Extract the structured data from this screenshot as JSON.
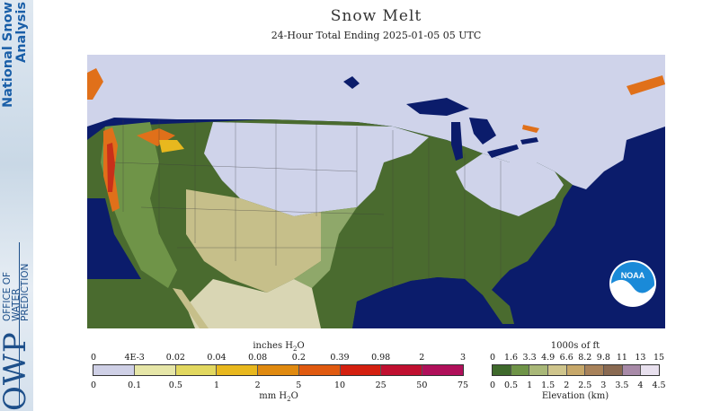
{
  "sidebar": {
    "title": "National Snow\nAnalysis",
    "org": "OFFICE OF\nWATER\nPREDICTION",
    "abbr": "OWP"
  },
  "header": {
    "title": "Snow Melt",
    "subtitle": "24-Hour Total Ending 2025-01-05 05 UTC"
  },
  "map": {
    "logo_text": "NOAA",
    "colors": {
      "ocean": "#0b1c6b",
      "snow": "#cfd3ea",
      "green_dark": "#4a6b2f",
      "green_light": "#8fa86a",
      "plains": "#c6bf8a",
      "melt_orange": "#e0701a",
      "melt_red": "#c8301a",
      "mexico": "#d9d6b4"
    }
  },
  "melt_legend": {
    "top_unit": "inches H",
    "top_unit_sub": "2",
    "top_unit_end": "O",
    "top_ticks": [
      "0",
      "4E-3",
      "0.02",
      "0.04",
      "0.08",
      "0.2",
      "0.39",
      "0.98",
      "2",
      "3"
    ],
    "bottom_ticks": [
      "0",
      "0.1",
      "0.5",
      "1",
      "2",
      "5",
      "10",
      "25",
      "50",
      "75"
    ],
    "bottom_unit": "mm H",
    "bottom_unit_sub": "2",
    "bottom_unit_end": "O",
    "colors": [
      "#cfd0e6",
      "#e6e6a8",
      "#e2d860",
      "#e8b81e",
      "#e08a10",
      "#e05a10",
      "#d42010",
      "#c01030",
      "#b0105a"
    ]
  },
  "elevation_legend": {
    "top_unit": "1000s of ft",
    "top_ticks": [
      "0",
      "1.6",
      "3.3",
      "4.9",
      "6.6",
      "8.2",
      "9.8",
      "11",
      "13",
      "15"
    ],
    "bottom_ticks": [
      "0",
      "0.5",
      "1",
      "1.5",
      "2",
      "2.5",
      "3",
      "3.5",
      "4",
      "4.5"
    ],
    "bottom_unit": "Elevation (km)",
    "colors": [
      "#3f6a2c",
      "#6f9448",
      "#a9b878",
      "#cfc58c",
      "#c7a86a",
      "#a8825a",
      "#8a6a52",
      "#a88aa8",
      "#e8e0ee"
    ]
  }
}
